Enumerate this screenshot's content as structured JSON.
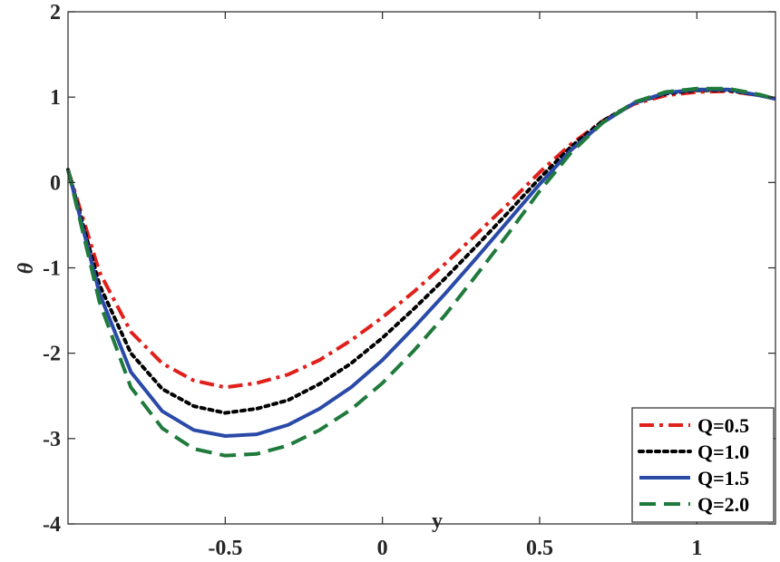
{
  "chart_data": {
    "type": "line",
    "title": "",
    "xlabel": "y",
    "ylabel": "θ",
    "xlim": [
      -1,
      1.25
    ],
    "ylim": [
      -4,
      2
    ],
    "x_ticks": [
      -0.5,
      0,
      0.5,
      1
    ],
    "x_tick_labels": [
      "-0.5",
      "0",
      "0.5",
      "1"
    ],
    "y_ticks": [
      -4,
      -3,
      -2,
      -1,
      0,
      1,
      2
    ],
    "y_tick_labels": [
      "-4",
      "-3",
      "-2",
      "-1",
      "0",
      "1",
      "2"
    ],
    "grid": false,
    "legend_position": "bottom-right",
    "series": [
      {
        "name": "Q=0.5",
        "color": "#e0201b",
        "style": "dashdot",
        "x": [
          -1.0,
          -0.9,
          -0.8,
          -0.7,
          -0.6,
          -0.5,
          -0.4,
          -0.3,
          -0.2,
          -0.1,
          0.0,
          0.1,
          0.2,
          0.3,
          0.4,
          0.5,
          0.6,
          0.7,
          0.8,
          0.9,
          1.0,
          1.1,
          1.2,
          1.25
        ],
        "y": [
          0.15,
          -1.05,
          -1.75,
          -2.12,
          -2.32,
          -2.4,
          -2.35,
          -2.25,
          -2.08,
          -1.85,
          -1.58,
          -1.28,
          -0.95,
          -0.6,
          -0.25,
          0.12,
          0.45,
          0.72,
          0.92,
          1.02,
          1.06,
          1.07,
          1.02,
          0.98
        ]
      },
      {
        "name": "Q=1.0",
        "color": "#000000",
        "style": "dotted",
        "x": [
          -1.0,
          -0.9,
          -0.8,
          -0.7,
          -0.6,
          -0.5,
          -0.4,
          -0.3,
          -0.2,
          -0.1,
          0.0,
          0.1,
          0.2,
          0.3,
          0.4,
          0.5,
          0.6,
          0.7,
          0.8,
          0.9,
          1.0,
          1.1,
          1.2,
          1.25
        ],
        "y": [
          0.15,
          -1.2,
          -2.0,
          -2.42,
          -2.62,
          -2.7,
          -2.65,
          -2.55,
          -2.36,
          -2.12,
          -1.82,
          -1.48,
          -1.12,
          -0.74,
          -0.35,
          0.05,
          0.42,
          0.72,
          0.93,
          1.04,
          1.08,
          1.08,
          1.02,
          0.98
        ]
      },
      {
        "name": "Q=1.5",
        "color": "#2a4aa8",
        "style": "solid",
        "x": [
          -1.0,
          -0.9,
          -0.8,
          -0.7,
          -0.6,
          -0.5,
          -0.4,
          -0.3,
          -0.2,
          -0.1,
          0.0,
          0.1,
          0.2,
          0.3,
          0.4,
          0.5,
          0.6,
          0.7,
          0.8,
          0.9,
          1.0,
          1.1,
          1.2,
          1.25
        ],
        "y": [
          0.15,
          -1.3,
          -2.22,
          -2.68,
          -2.9,
          -2.97,
          -2.95,
          -2.84,
          -2.65,
          -2.4,
          -2.08,
          -1.7,
          -1.3,
          -0.88,
          -0.45,
          -0.02,
          0.38,
          0.7,
          0.93,
          1.05,
          1.09,
          1.09,
          1.02,
          0.98
        ]
      },
      {
        "name": "Q=2.0",
        "color": "#1f7a3c",
        "style": "dashed",
        "x": [
          -1.0,
          -0.9,
          -0.8,
          -0.7,
          -0.6,
          -0.5,
          -0.4,
          -0.3,
          -0.2,
          -0.1,
          0.0,
          0.1,
          0.2,
          0.3,
          0.4,
          0.5,
          0.6,
          0.7,
          0.8,
          0.9,
          1.0,
          1.1,
          1.2,
          1.25
        ],
        "y": [
          0.15,
          -1.4,
          -2.4,
          -2.88,
          -3.12,
          -3.2,
          -3.18,
          -3.08,
          -2.9,
          -2.66,
          -2.35,
          -1.97,
          -1.55,
          -1.08,
          -0.6,
          -0.1,
          0.35,
          0.7,
          0.94,
          1.06,
          1.1,
          1.1,
          1.03,
          0.98
        ]
      }
    ]
  }
}
